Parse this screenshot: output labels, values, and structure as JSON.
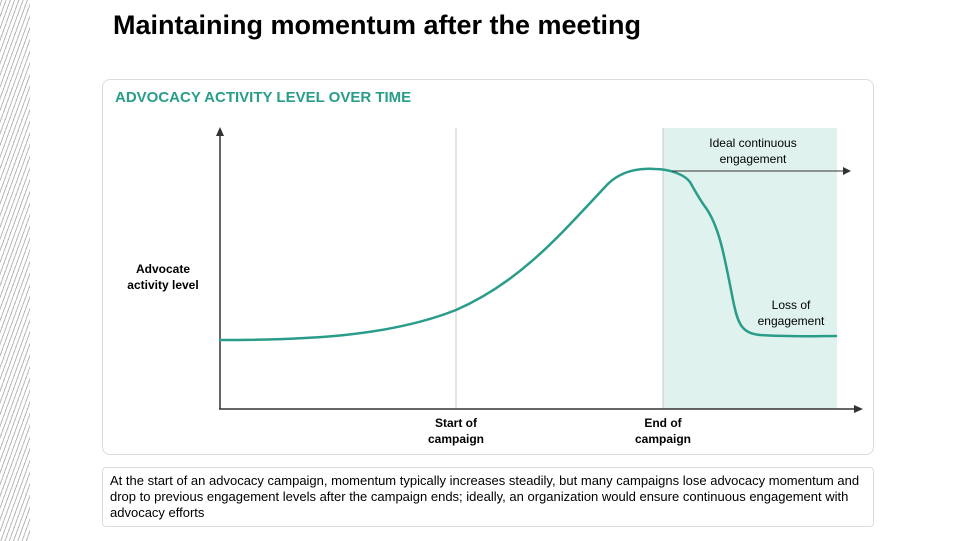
{
  "slide": {
    "title": "Maintaining momentum after the meeting",
    "panel_title": "ADVOCACY ACTIVITY LEVEL OVER TIME",
    "description": "At the start of an advocacy campaign, momentum typically increases steadily, but many campaigns lose advocacy momentum and drop to previous engagement levels after the campaign ends; ideally, an organization would ensure continuous engagement with advocacy efforts"
  },
  "diagram": {
    "y_axis_label": "Advocate activity level",
    "markers": {
      "start": "Start of campaign",
      "end": "End of campaign"
    },
    "annotations": {
      "ideal": "Ideal continuous engagement",
      "loss": "Loss of engagement"
    },
    "colors": {
      "curve": "#2a9d8a",
      "highlight": "#dff2ee",
      "panel_title": "#2a9d8a",
      "axis": "#333333",
      "marker_line": "#c8c8c8"
    }
  }
}
